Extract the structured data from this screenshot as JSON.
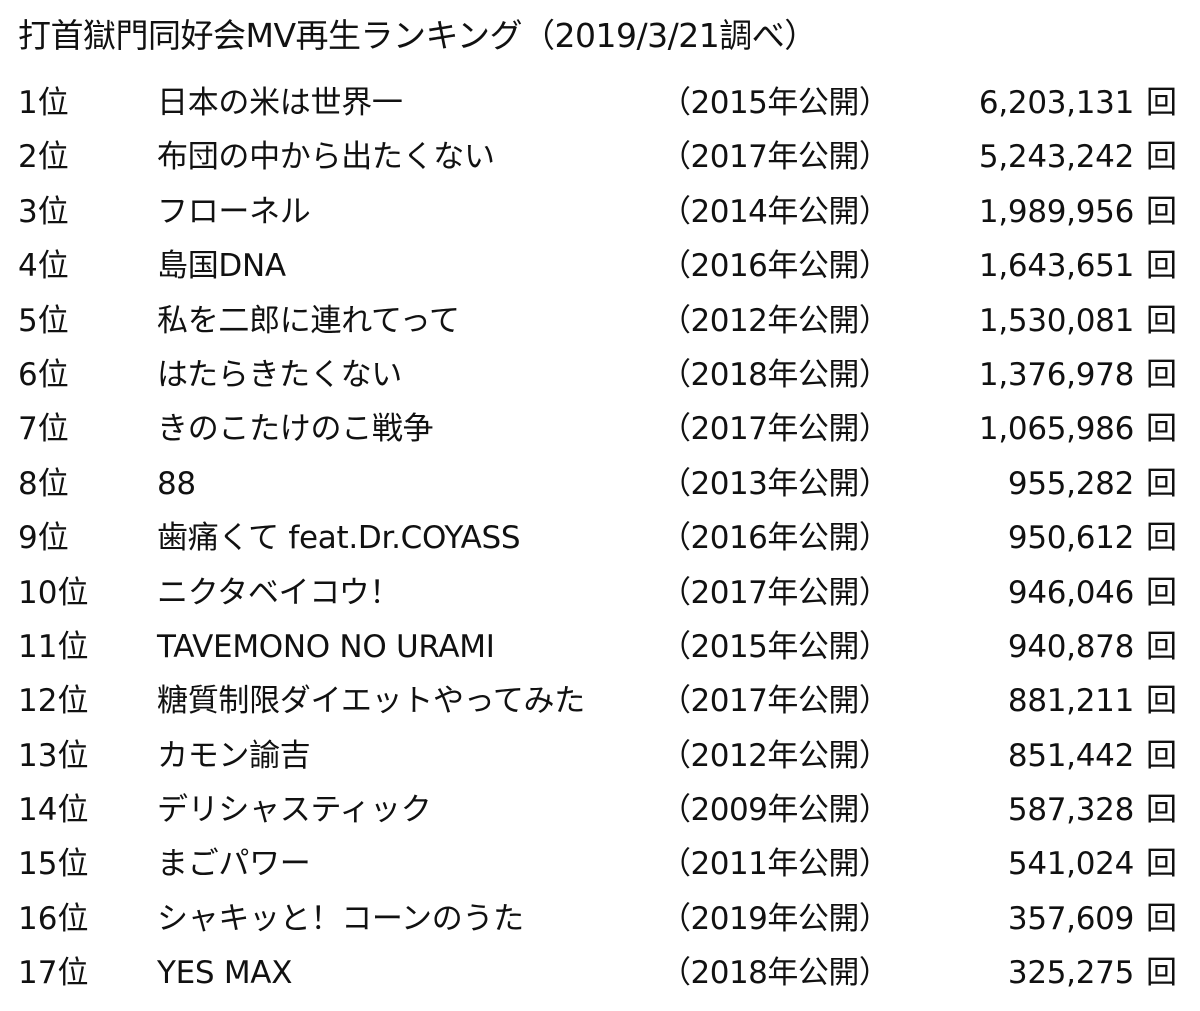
{
  "title": "打首獄門同好会MV再生ランキング（2019/3/21調べ）",
  "rows": [
    {
      "rank": "1位",
      "song": "日本の米は世界一",
      "year": "（2015年公開）",
      "views": "6,203,131",
      "unit": "回"
    },
    {
      "rank": "2位",
      "song": "布団の中から出たくない",
      "year": "（2017年公開）",
      "views": "5,243,242",
      "unit": "回"
    },
    {
      "rank": "3位",
      "song": "フローネル",
      "year": "（2014年公開）",
      "views": "1,989,956",
      "unit": "回"
    },
    {
      "rank": "4位",
      "song": "島国DNA",
      "year": "（2016年公開）",
      "views": "1,643,651",
      "unit": "回"
    },
    {
      "rank": "5位",
      "song": "私を二郎に連れてって",
      "year": "（2012年公開）",
      "views": "1,530,081",
      "unit": "回"
    },
    {
      "rank": "6位",
      "song": "はたらきたくない",
      "year": "（2018年公開）",
      "views": "1,376,978",
      "unit": "回"
    },
    {
      "rank": "7位",
      "song": "きのこたけのこ戦争",
      "year": "（2017年公開）",
      "views": "1,065,986",
      "unit": "回"
    },
    {
      "rank": "8位",
      "song": "88",
      "year": "（2013年公開）",
      "views": "955,282",
      "unit": "回"
    },
    {
      "rank": "9位",
      "song": "歯痛くて feat.Dr.COYASS",
      "year": "（2016年公開）",
      "views": "950,612",
      "unit": "回"
    },
    {
      "rank": "10位",
      "song": "ニクタベイコウ！",
      "year": "（2017年公開）",
      "views": "946,046",
      "unit": "回"
    },
    {
      "rank": "11位",
      "song": "TAVEMONO NO URAMI",
      "year": "（2015年公開）",
      "views": "940,878",
      "unit": "回"
    },
    {
      "rank": "12位",
      "song": "糖質制限ダイエットやってみた",
      "year": "（2017年公開）",
      "views": "881,211",
      "unit": "回"
    },
    {
      "rank": "13位",
      "song": "カモン諭吉",
      "year": "（2012年公開）",
      "views": "851,442",
      "unit": "回"
    },
    {
      "rank": "14位",
      "song": "デリシャスティック",
      "year": "（2009年公開）",
      "views": "587,328",
      "unit": "回"
    },
    {
      "rank": "15位",
      "song": "まごパワー",
      "year": "（2011年公開）",
      "views": "541,024",
      "unit": "回"
    },
    {
      "rank": "16位",
      "song": "シャキッと！コーンのうた",
      "year": "（2019年公開）",
      "views": "357,609",
      "unit": "回"
    },
    {
      "rank": "17位",
      "song": "YES MAX",
      "year": "（2018年公開）",
      "views": "325,275",
      "unit": "回"
    }
  ]
}
